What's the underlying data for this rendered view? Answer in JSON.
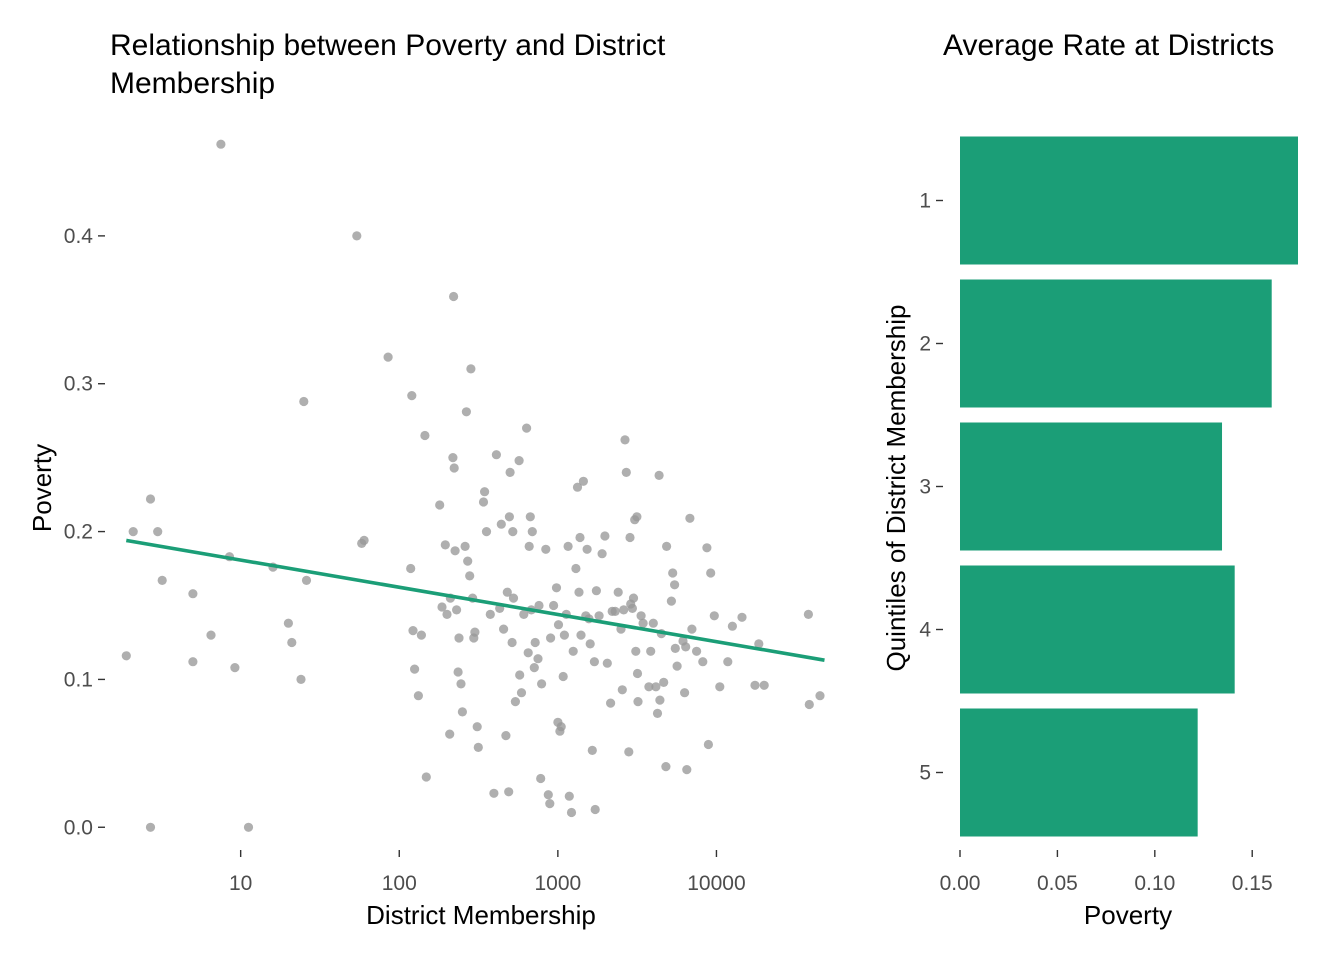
{
  "chart_data": [
    {
      "type": "scatter",
      "title": "Relationship between Poverty and District Membership",
      "xlabel": "District Membership",
      "ylabel": "Poverty",
      "x_scale": "log10",
      "x_ticks": [
        10,
        100,
        1000,
        10000
      ],
      "x_tick_labels": [
        "10",
        "100",
        "1000",
        "10000"
      ],
      "y_ticks": [
        0.0,
        0.1,
        0.2,
        0.3,
        0.4
      ],
      "y_tick_labels": [
        "0.0",
        "0.1",
        "0.2",
        "0.3",
        "0.4"
      ],
      "xlim": [
        1.5,
        52000
      ],
      "ylim": [
        -0.012,
        0.475
      ],
      "grid": false,
      "point_color": "#999999",
      "line_color": "#1b9e77",
      "trend_line": {
        "x": [
          1.9,
          48000
        ],
        "y": [
          0.194,
          0.113
        ]
      },
      "points": [
        [
          1.9,
          0.116
        ],
        [
          2.1,
          0.2
        ],
        [
          2.7,
          0.222
        ],
        [
          3.0,
          0.2
        ],
        [
          3.2,
          0.167
        ],
        [
          2.7,
          0.0
        ],
        [
          5.0,
          0.158
        ],
        [
          5.0,
          0.112
        ],
        [
          6.5,
          0.13
        ],
        [
          7.5,
          0.462
        ],
        [
          8.5,
          0.183
        ],
        [
          9.2,
          0.108
        ],
        [
          11.2,
          0.0
        ],
        [
          16,
          0.176
        ],
        [
          20,
          0.138
        ],
        [
          21,
          0.125
        ],
        [
          24,
          0.1
        ],
        [
          25,
          0.288
        ],
        [
          26,
          0.167
        ],
        [
          54,
          0.4
        ],
        [
          58,
          0.192
        ],
        [
          60,
          0.194
        ],
        [
          85,
          0.318
        ],
        [
          120,
          0.292
        ],
        [
          118,
          0.175
        ],
        [
          122,
          0.133
        ],
        [
          125,
          0.107
        ],
        [
          132,
          0.089
        ],
        [
          138,
          0.13
        ],
        [
          145,
          0.265
        ],
        [
          148,
          0.034
        ],
        [
          180,
          0.218
        ],
        [
          186,
          0.149
        ],
        [
          195,
          0.191
        ],
        [
          200,
          0.144
        ],
        [
          208,
          0.063
        ],
        [
          210,
          0.155
        ],
        [
          218,
          0.25
        ],
        [
          220,
          0.359
        ],
        [
          222,
          0.243
        ],
        [
          225,
          0.187
        ],
        [
          230,
          0.147
        ],
        [
          235,
          0.105
        ],
        [
          238,
          0.128
        ],
        [
          245,
          0.097
        ],
        [
          250,
          0.078
        ],
        [
          260,
          0.19
        ],
        [
          265,
          0.281
        ],
        [
          270,
          0.18
        ],
        [
          278,
          0.17
        ],
        [
          283,
          0.31
        ],
        [
          290,
          0.155
        ],
        [
          295,
          0.128
        ],
        [
          300,
          0.132
        ],
        [
          310,
          0.068
        ],
        [
          315,
          0.054
        ],
        [
          340,
          0.22
        ],
        [
          345,
          0.227
        ],
        [
          355,
          0.2
        ],
        [
          375,
          0.144
        ],
        [
          395,
          0.023
        ],
        [
          410,
          0.252
        ],
        [
          430,
          0.148
        ],
        [
          440,
          0.205
        ],
        [
          455,
          0.134
        ],
        [
          470,
          0.062
        ],
        [
          490,
          0.024
        ],
        [
          480,
          0.159
        ],
        [
          495,
          0.21
        ],
        [
          500,
          0.24
        ],
        [
          515,
          0.125
        ],
        [
          520,
          0.2
        ],
        [
          525,
          0.155
        ],
        [
          540,
          0.085
        ],
        [
          570,
          0.248
        ],
        [
          575,
          0.103
        ],
        [
          590,
          0.091
        ],
        [
          610,
          0.144
        ],
        [
          635,
          0.27
        ],
        [
          650,
          0.118
        ],
        [
          660,
          0.19
        ],
        [
          670,
          0.21
        ],
        [
          680,
          0.147
        ],
        [
          690,
          0.2
        ],
        [
          710,
          0.108
        ],
        [
          720,
          0.125
        ],
        [
          750,
          0.114
        ],
        [
          760,
          0.15
        ],
        [
          780,
          0.033
        ],
        [
          790,
          0.097
        ],
        [
          840,
          0.188
        ],
        [
          870,
          0.022
        ],
        [
          890,
          0.016
        ],
        [
          900,
          0.128
        ],
        [
          940,
          0.15
        ],
        [
          980,
          0.162
        ],
        [
          1000,
          0.071
        ],
        [
          1010,
          0.137
        ],
        [
          1030,
          0.065
        ],
        [
          1050,
          0.068
        ],
        [
          1080,
          0.102
        ],
        [
          1100,
          0.13
        ],
        [
          1130,
          0.144
        ],
        [
          1160,
          0.19
        ],
        [
          1180,
          0.021
        ],
        [
          1220,
          0.01
        ],
        [
          1250,
          0.119
        ],
        [
          1300,
          0.175
        ],
        [
          1330,
          0.23
        ],
        [
          1360,
          0.159
        ],
        [
          1380,
          0.196
        ],
        [
          1400,
          0.13
        ],
        [
          1450,
          0.234
        ],
        [
          1500,
          0.143
        ],
        [
          1530,
          0.188
        ],
        [
          1570,
          0.141
        ],
        [
          1600,
          0.124
        ],
        [
          1650,
          0.052
        ],
        [
          1700,
          0.112
        ],
        [
          1720,
          0.012
        ],
        [
          1750,
          0.16
        ],
        [
          1820,
          0.143
        ],
        [
          1900,
          0.185
        ],
        [
          1980,
          0.197
        ],
        [
          2050,
          0.111
        ],
        [
          2150,
          0.084
        ],
        [
          2200,
          0.146
        ],
        [
          2300,
          0.146
        ],
        [
          2400,
          0.159
        ],
        [
          2500,
          0.134
        ],
        [
          2550,
          0.093
        ],
        [
          2600,
          0.147
        ],
        [
          2650,
          0.262
        ],
        [
          2700,
          0.24
        ],
        [
          2800,
          0.051
        ],
        [
          2850,
          0.196
        ],
        [
          2880,
          0.151
        ],
        [
          2950,
          0.148
        ],
        [
          3000,
          0.155
        ],
        [
          3050,
          0.208
        ],
        [
          3100,
          0.119
        ],
        [
          3150,
          0.21
        ],
        [
          3180,
          0.104
        ],
        [
          3200,
          0.085
        ],
        [
          3350,
          0.143
        ],
        [
          3450,
          0.138
        ],
        [
          3750,
          0.095
        ],
        [
          3850,
          0.119
        ],
        [
          4000,
          0.138
        ],
        [
          4150,
          0.095
        ],
        [
          4250,
          0.077
        ],
        [
          4350,
          0.238
        ],
        [
          4400,
          0.086
        ],
        [
          4500,
          0.131
        ],
        [
          4650,
          0.098
        ],
        [
          4800,
          0.041
        ],
        [
          4850,
          0.19
        ],
        [
          5200,
          0.153
        ],
        [
          5300,
          0.172
        ],
        [
          5450,
          0.164
        ],
        [
          5500,
          0.121
        ],
        [
          5650,
          0.109
        ],
        [
          6150,
          0.126
        ],
        [
          6300,
          0.091
        ],
        [
          6400,
          0.122
        ],
        [
          6500,
          0.039
        ],
        [
          6800,
          0.209
        ],
        [
          7000,
          0.134
        ],
        [
          7500,
          0.119
        ],
        [
          8200,
          0.112
        ],
        [
          8700,
          0.189
        ],
        [
          8900,
          0.056
        ],
        [
          9200,
          0.172
        ],
        [
          9700,
          0.143
        ],
        [
          10500,
          0.095
        ],
        [
          11800,
          0.112
        ],
        [
          12600,
          0.136
        ],
        [
          14500,
          0.142
        ],
        [
          17500,
          0.096
        ],
        [
          18500,
          0.124
        ],
        [
          20000,
          0.096
        ],
        [
          38000,
          0.144
        ],
        [
          38500,
          0.083
        ],
        [
          45000,
          0.089
        ]
      ]
    },
    {
      "type": "bar",
      "orientation": "horizontal",
      "title": "Average Rate at Districts",
      "xlabel": "Poverty",
      "ylabel": "Quintiles of District Membership",
      "categories": [
        "1",
        "2",
        "3",
        "4",
        "5"
      ],
      "values": [
        0.1735,
        0.16,
        0.1345,
        0.141,
        0.122
      ],
      "x_ticks": [
        0.0,
        0.05,
        0.1,
        0.15
      ],
      "x_tick_labels": [
        "0.00",
        "0.05",
        "0.10",
        "0.15"
      ],
      "xlim": [
        0,
        0.1735
      ],
      "bar_color": "#1b9e77",
      "grid": false
    }
  ]
}
